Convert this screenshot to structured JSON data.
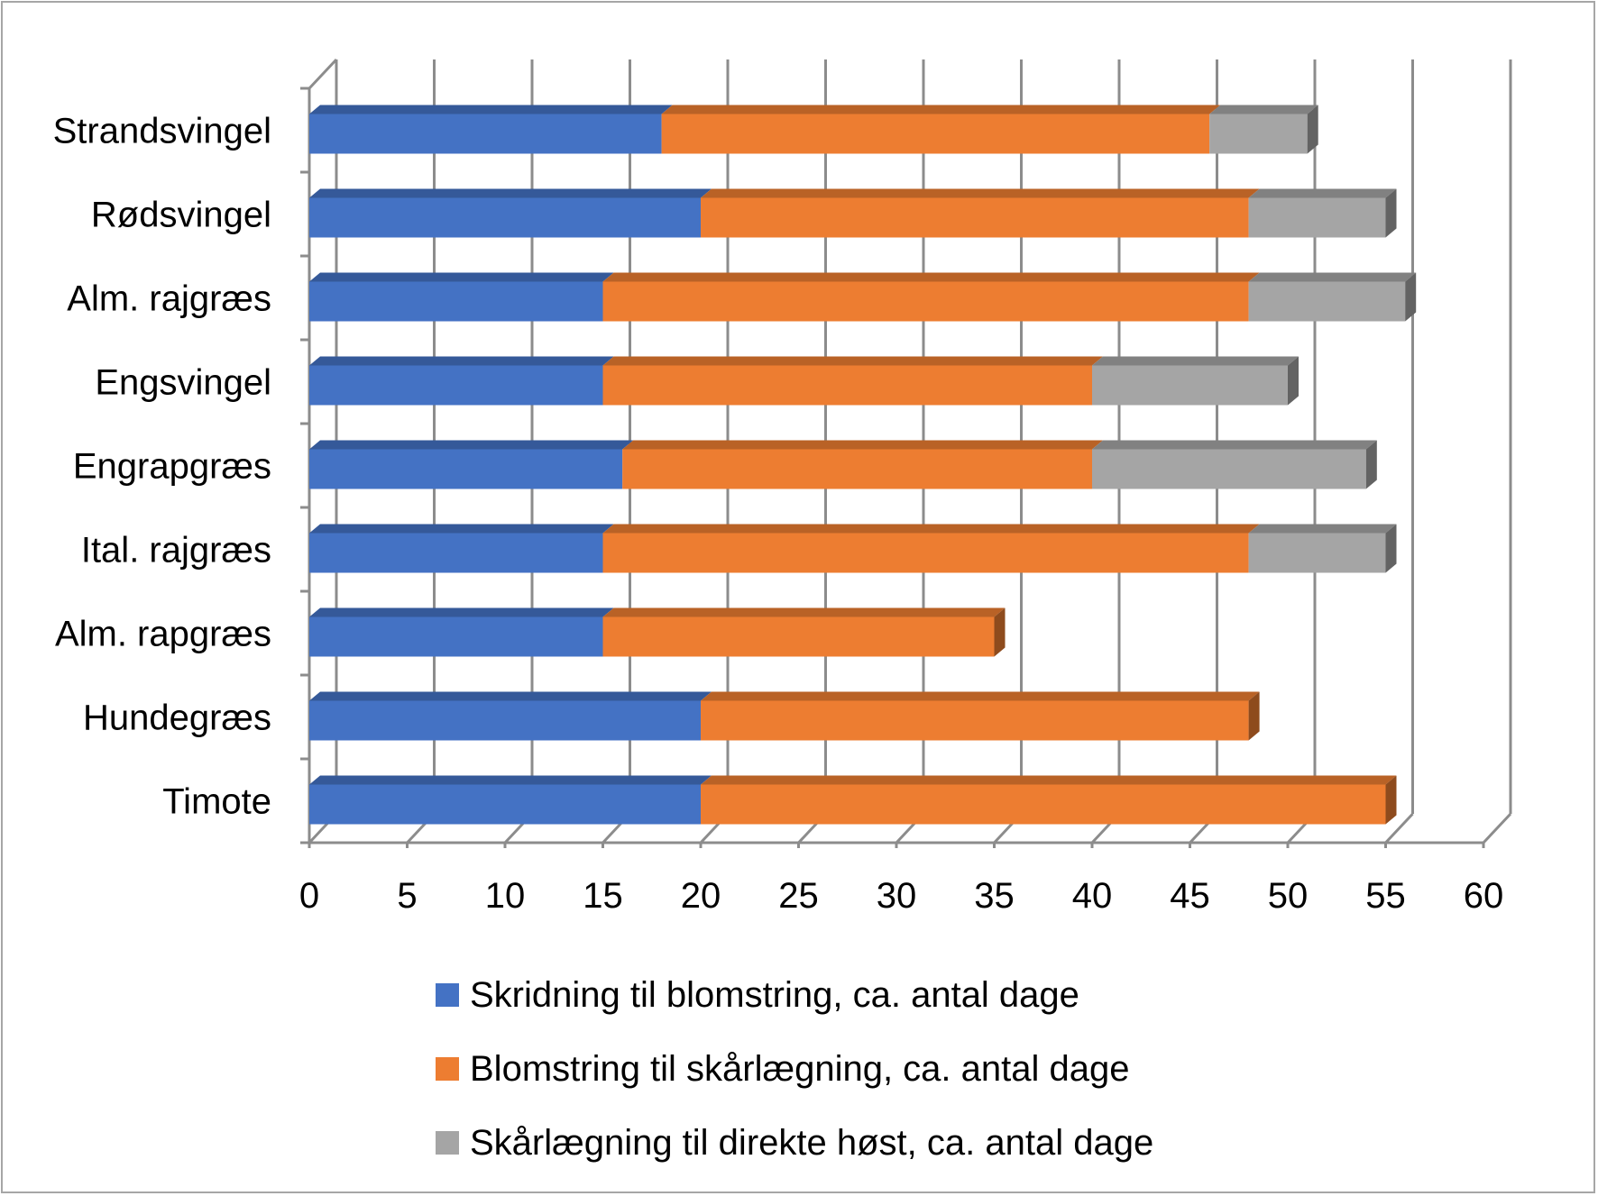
{
  "chart_data": {
    "type": "bar",
    "orientation": "horizontal",
    "stacked": true,
    "style": "3d",
    "categories": [
      "Strandsvingel",
      "Rødsvingel",
      "Alm. rajgræs",
      "Engsvingel",
      "Engrapgræs",
      "Ital. rajgræs",
      "Alm. rapgræs",
      "Hundegræs",
      "Timote"
    ],
    "series": [
      {
        "name": "Skridning til blomstring, ca. antal dage",
        "color": "#4472c4",
        "values": [
          18,
          20,
          15,
          15,
          16,
          15,
          15,
          20,
          20
        ]
      },
      {
        "name": "Blomstring til skårlægning, ca. antal dage",
        "color": "#ed7d31",
        "values": [
          28,
          28,
          33,
          25,
          24,
          33,
          20,
          28,
          35
        ]
      },
      {
        "name": "Skårlægning til direkte høst, ca. antal dage",
        "color": "#a5a5a5",
        "values": [
          5,
          7,
          8,
          10,
          14,
          7,
          0,
          0,
          0
        ]
      }
    ],
    "xlim": [
      0,
      60
    ],
    "xticks": [
      "0",
      "5",
      "10",
      "15",
      "20",
      "25",
      "30",
      "35",
      "40",
      "45",
      "50",
      "55",
      "60"
    ],
    "grid": true,
    "legend_position": "bottom"
  }
}
